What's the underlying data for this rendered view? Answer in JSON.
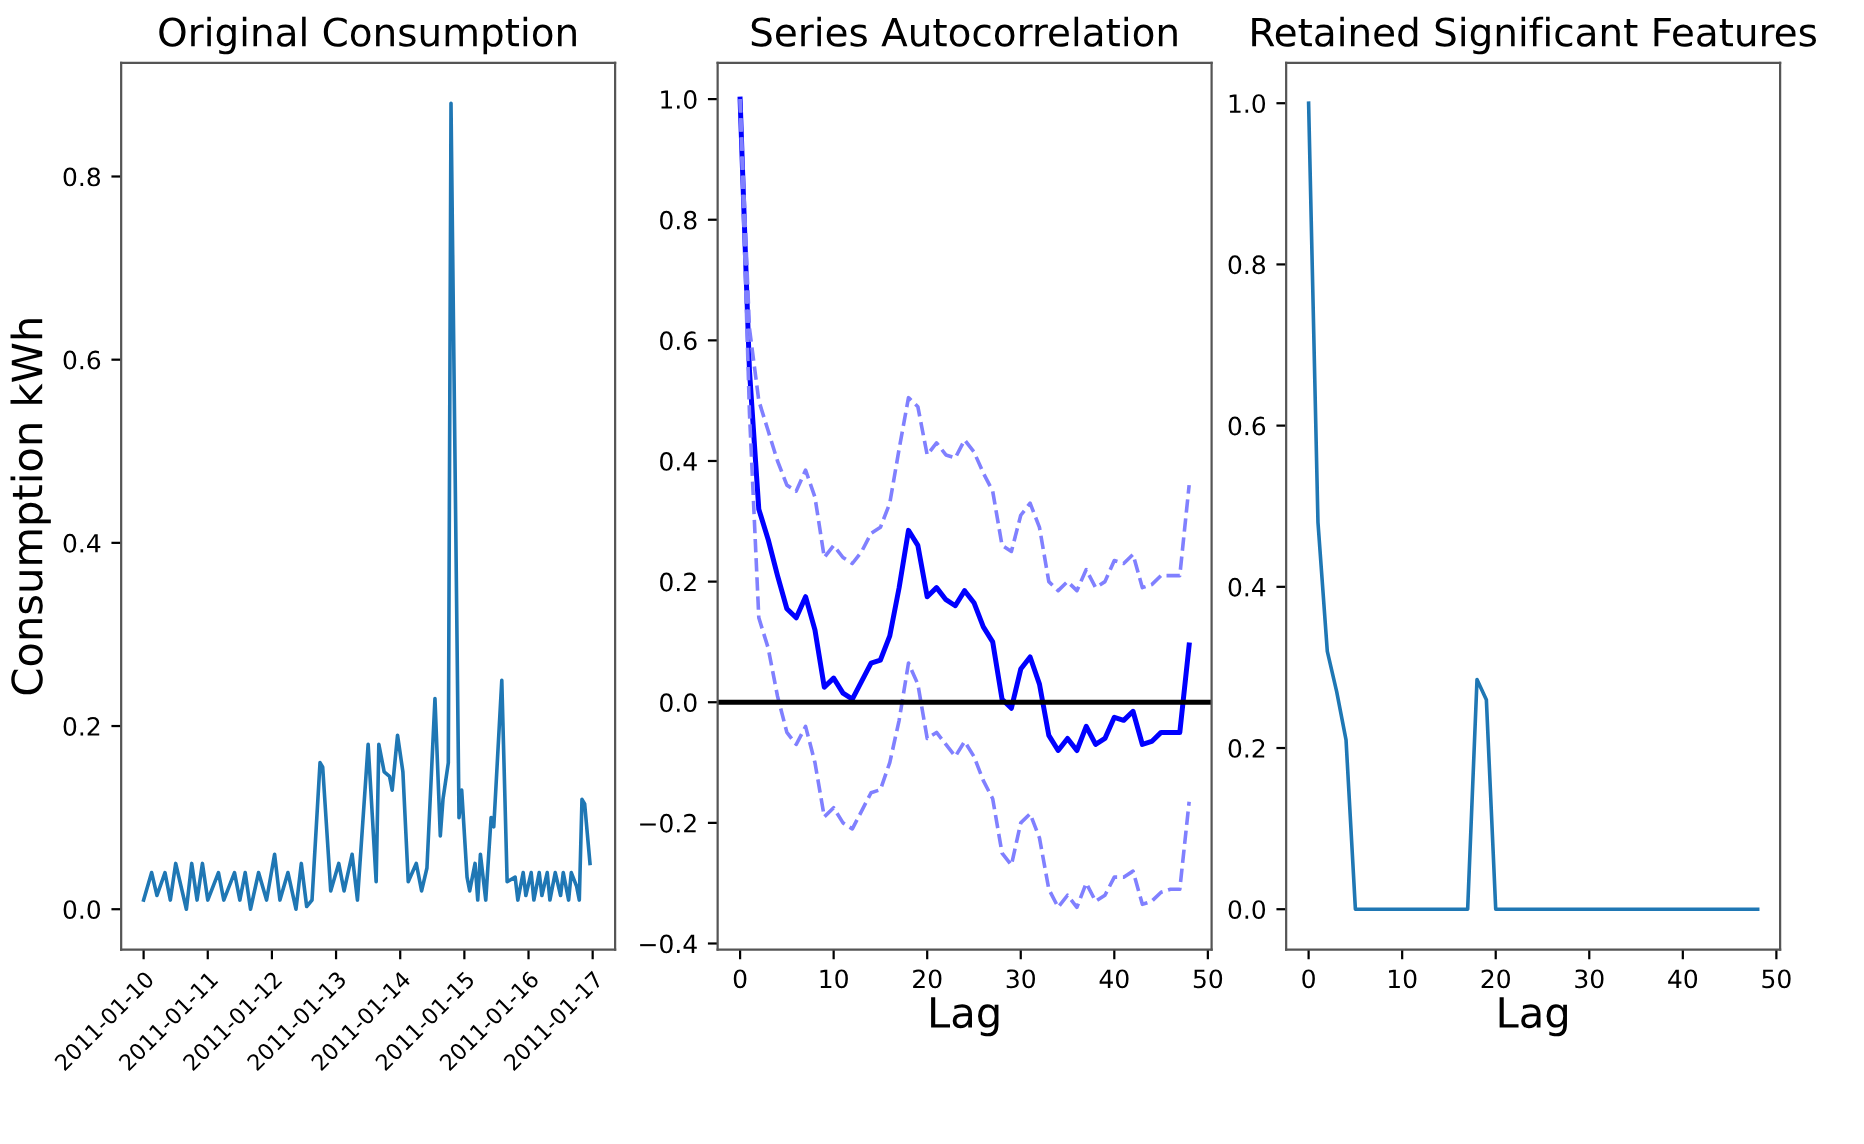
{
  "chart_data": [
    {
      "type": "line",
      "title": "Original Consumption",
      "ylabel": "Consumption kWh",
      "x": [
        "2011-01-10T00:00",
        "2011-01-10T03:00",
        "2011-01-10T05:00",
        "2011-01-10T08:00",
        "2011-01-10T10:00",
        "2011-01-10T12:00",
        "2011-01-10T16:00",
        "2011-01-10T18:00",
        "2011-01-10T20:00",
        "2011-01-10T22:00",
        "2011-01-11T00:00",
        "2011-01-11T04:00",
        "2011-01-11T06:00",
        "2011-01-11T10:00",
        "2011-01-11T12:00",
        "2011-01-11T14:00",
        "2011-01-11T16:00",
        "2011-01-11T19:00",
        "2011-01-11T22:00",
        "2011-01-12T01:00",
        "2011-01-12T03:00",
        "2011-01-12T06:00",
        "2011-01-12T09:00",
        "2011-01-12T11:00",
        "2011-01-12T13:00",
        "2011-01-12T15:00",
        "2011-01-12T18:00",
        "2011-01-12T19:00",
        "2011-01-12T22:00",
        "2011-01-13T01:00",
        "2011-01-13T03:00",
        "2011-01-13T06:00",
        "2011-01-13T08:00",
        "2011-01-13T12:00",
        "2011-01-13T15:00",
        "2011-01-13T16:00",
        "2011-01-13T18:00",
        "2011-01-13T20:00",
        "2011-01-13T21:00",
        "2011-01-13T23:00",
        "2011-01-14T01:00",
        "2011-01-14T03:00",
        "2011-01-14T06:00",
        "2011-01-14T08:00",
        "2011-01-14T10:00",
        "2011-01-14T13:00",
        "2011-01-14T15:00",
        "2011-01-14T16:00",
        "2011-01-14T18:00",
        "2011-01-14T19:00",
        "2011-01-14T22:00",
        "2011-01-14T23:00",
        "2011-01-15T01:00",
        "2011-01-15T02:00",
        "2011-01-15T04:00",
        "2011-01-15T05:00",
        "2011-01-15T06:00",
        "2011-01-15T08:00",
        "2011-01-15T10:00",
        "2011-01-15T11:00",
        "2011-01-15T14:00",
        "2011-01-15T16:00",
        "2011-01-15T19:00",
        "2011-01-15T20:00",
        "2011-01-15T22:00",
        "2011-01-15T23:00",
        "2011-01-16T01:00",
        "2011-01-16T02:00",
        "2011-01-16T04:00",
        "2011-01-16T05:00",
        "2011-01-16T07:00",
        "2011-01-16T08:00",
        "2011-01-16T10:00",
        "2011-01-16T12:00",
        "2011-01-16T13:00",
        "2011-01-16T15:00",
        "2011-01-16T16:00",
        "2011-01-16T18:00",
        "2011-01-16T19:00",
        "2011-01-16T20:00",
        "2011-01-16T21:00",
        "2011-01-16T23:00"
      ],
      "series": [
        {
          "color": "#1f77b4",
          "values": [
            0.01,
            0.04,
            0.015,
            0.04,
            0.01,
            0.05,
            0.0,
            0.05,
            0.01,
            0.05,
            0.01,
            0.04,
            0.01,
            0.04,
            0.01,
            0.04,
            0.0,
            0.04,
            0.01,
            0.06,
            0.01,
            0.04,
            0.0,
            0.05,
            0.003,
            0.01,
            0.16,
            0.155,
            0.02,
            0.05,
            0.02,
            0.06,
            0.01,
            0.18,
            0.03,
            0.18,
            0.15,
            0.145,
            0.13,
            0.19,
            0.15,
            0.03,
            0.05,
            0.02,
            0.045,
            0.23,
            0.08,
            0.12,
            0.16,
            0.88,
            0.1,
            0.13,
            0.035,
            0.02,
            0.05,
            0.01,
            0.06,
            0.01,
            0.1,
            0.09,
            0.25,
            0.03,
            0.035,
            0.01,
            0.04,
            0.015,
            0.04,
            0.01,
            0.04,
            0.015,
            0.04,
            0.01,
            0.04,
            0.015,
            0.04,
            0.01,
            0.04,
            0.025,
            0.01,
            0.12,
            0.115,
            0.05
          ]
        }
      ],
      "xlim": [
        "2011-01-09T15:36",
        "2011-01-17T08:24"
      ],
      "xticks": [
        "2011-01-10",
        "2011-01-11",
        "2011-01-12",
        "2011-01-13",
        "2011-01-14",
        "2011-01-15",
        "2011-01-16",
        "2011-01-17"
      ],
      "ylim": [
        -0.044,
        0.924
      ],
      "yticks": [
        {
          "value": 0,
          "label": "0.0"
        },
        0.2,
        0.4,
        0.6,
        0.8
      ],
      "grid": false
    },
    {
      "type": "line",
      "title": "Series Autocorrelation",
      "xlabel": "Lag",
      "x": [
        0,
        1,
        2,
        3,
        4,
        5,
        6,
        7,
        8,
        9,
        10,
        11,
        12,
        13,
        14,
        15,
        16,
        17,
        18,
        19,
        20,
        21,
        22,
        23,
        24,
        25,
        26,
        27,
        28,
        29,
        30,
        31,
        32,
        33,
        34,
        35,
        36,
        37,
        38,
        39,
        40,
        41,
        42,
        43,
        44,
        45,
        46,
        47,
        48
      ],
      "series": [
        {
          "color": "#0000ff",
          "line_style": "solid",
          "values": [
            1.0,
            0.55,
            0.32,
            0.27,
            0.21,
            0.155,
            0.14,
            0.175,
            0.12,
            0.025,
            0.04,
            0.015,
            0.005,
            0.035,
            0.065,
            0.07,
            0.11,
            0.19,
            0.285,
            0.26,
            0.175,
            0.19,
            0.17,
            0.16,
            0.185,
            0.165,
            0.125,
            0.1,
            0.005,
            -0.01,
            0.055,
            0.075,
            0.03,
            -0.055,
            -0.08,
            -0.06,
            -0.08,
            -0.04,
            -0.07,
            -0.06,
            -0.025,
            -0.03,
            -0.015,
            -0.07,
            -0.065,
            -0.05,
            -0.05,
            -0.05,
            0.095
          ]
        },
        {
          "color": "#8080ff",
          "line_style": "dashed",
          "values": [
            1.0,
            0.62,
            0.5,
            0.45,
            0.4,
            0.36,
            0.35,
            0.385,
            0.34,
            0.24,
            0.26,
            0.24,
            0.23,
            0.25,
            0.28,
            0.29,
            0.33,
            0.42,
            0.505,
            0.49,
            0.41,
            0.43,
            0.41,
            0.405,
            0.435,
            0.415,
            0.38,
            0.35,
            0.26,
            0.25,
            0.31,
            0.33,
            0.29,
            0.2,
            0.185,
            0.2,
            0.185,
            0.22,
            0.19,
            0.2,
            0.235,
            0.23,
            0.245,
            0.19,
            0.195,
            0.21,
            0.21,
            0.21,
            0.36
          ]
        },
        {
          "color": "#8080ff",
          "line_style": "dashed",
          "values": [
            1.0,
            0.48,
            0.14,
            0.09,
            0.01,
            -0.05,
            -0.07,
            -0.04,
            -0.1,
            -0.19,
            -0.175,
            -0.2,
            -0.21,
            -0.18,
            -0.15,
            -0.145,
            -0.1,
            -0.03,
            0.065,
            0.03,
            -0.06,
            -0.05,
            -0.07,
            -0.09,
            -0.065,
            -0.09,
            -0.13,
            -0.16,
            -0.25,
            -0.27,
            -0.2,
            -0.185,
            -0.225,
            -0.31,
            -0.34,
            -0.32,
            -0.34,
            -0.3,
            -0.33,
            -0.32,
            -0.29,
            -0.29,
            -0.28,
            -0.335,
            -0.33,
            -0.315,
            -0.31,
            -0.31,
            -0.165
          ]
        }
      ],
      "ref_lines": [
        {
          "axis": "y",
          "value": 0,
          "color": "#000000"
        }
      ],
      "xlim": [
        -2.4,
        50.4
      ],
      "xticks": [
        0,
        10,
        20,
        30,
        40,
        50
      ],
      "ylim": [
        -0.41,
        1.06
      ],
      "yticks": [
        {
          "value": -0.4,
          "label": "−0.4"
        },
        {
          "value": -0.2,
          "label": "−0.2"
        },
        {
          "value": 0,
          "label": "0.0"
        },
        0.2,
        0.4,
        0.6,
        0.8,
        {
          "value": 1,
          "label": "1.0"
        }
      ],
      "grid": false
    },
    {
      "type": "line",
      "title": "Retained Significant Features",
      "xlabel": "Lag",
      "x": [
        0,
        1,
        2,
        3,
        4,
        5,
        6,
        7,
        8,
        9,
        10,
        11,
        12,
        13,
        14,
        15,
        16,
        17,
        18,
        19,
        20,
        21,
        22,
        23,
        24,
        25,
        26,
        27,
        28,
        29,
        30,
        31,
        32,
        33,
        34,
        35,
        36,
        37,
        38,
        39,
        40,
        41,
        42,
        43,
        44,
        45,
        46,
        47,
        48
      ],
      "series": [
        {
          "color": "#1f77b4",
          "values": [
            1.0,
            0.48,
            0.32,
            0.27,
            0.21,
            0,
            0,
            0,
            0,
            0,
            0,
            0,
            0,
            0,
            0,
            0,
            0,
            0,
            0.285,
            0.26,
            0,
            0,
            0,
            0,
            0,
            0,
            0,
            0,
            0,
            0,
            0,
            0,
            0,
            0,
            0,
            0,
            0,
            0,
            0,
            0,
            0,
            0,
            0,
            0,
            0,
            0,
            0,
            0,
            0
          ]
        }
      ],
      "xlim": [
        -2.4,
        50.4
      ],
      "xticks": [
        0,
        10,
        20,
        30,
        40,
        50
      ],
      "ylim": [
        -0.05,
        1.05
      ],
      "yticks": [
        {
          "value": 0,
          "label": "0.0"
        },
        0.2,
        0.4,
        0.6,
        0.8,
        {
          "value": 1,
          "label": "1.0"
        }
      ],
      "grid": false
    }
  ]
}
